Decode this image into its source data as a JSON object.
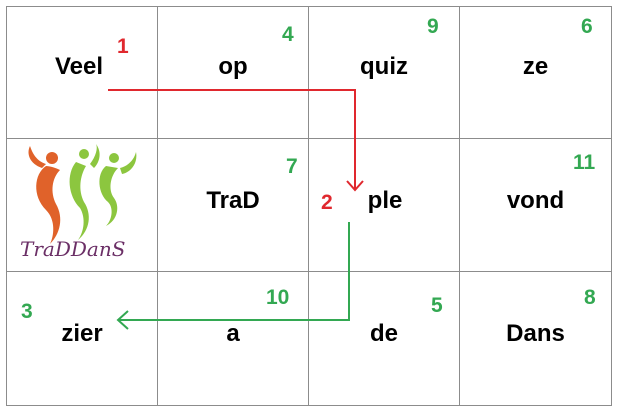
{
  "cells": [
    {
      "word": "Veel",
      "num": "1",
      "color": "red"
    },
    {
      "word": "op",
      "num": "4",
      "color": "green"
    },
    {
      "word": "quiz",
      "num": "9",
      "color": "green"
    },
    {
      "word": "ze",
      "num": "6",
      "color": "green"
    },
    {
      "word": "",
      "num": "",
      "color": "logo"
    },
    {
      "word": "TraD",
      "num": "7",
      "color": "green"
    },
    {
      "word": "ple",
      "num": "2",
      "color": "red"
    },
    {
      "word": "vond",
      "num": "11",
      "color": "green"
    },
    {
      "word": "zier",
      "num": "3",
      "color": "green"
    },
    {
      "word": "a",
      "num": "10",
      "color": "green"
    },
    {
      "word": "de",
      "num": "5",
      "color": "green"
    },
    {
      "word": "Dans",
      "num": "8",
      "color": "green"
    }
  ],
  "logo": {
    "text": "TraDDanS",
    "icon": "traddans-logo",
    "colors": [
      "#e0622a",
      "#8cc63f",
      "#6b2f66"
    ]
  },
  "arrow_colors": {
    "first": "#e0282e",
    "second": "#33a852"
  }
}
